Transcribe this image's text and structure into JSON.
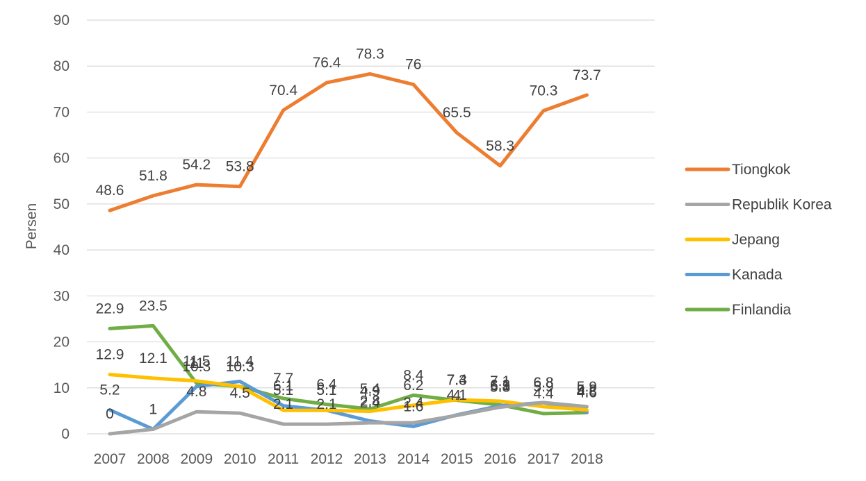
{
  "chart_data": {
    "type": "line",
    "title": "",
    "xlabel": "",
    "ylabel": "Persen",
    "ylim": [
      0,
      90
    ],
    "yticks": [
      0,
      10,
      20,
      30,
      40,
      50,
      60,
      70,
      80,
      90
    ],
    "grid": true,
    "legend": "right",
    "x": [
      "2007",
      "2008",
      "2009",
      "2010",
      "2011",
      "2012",
      "2013",
      "2014",
      "2015",
      "2016",
      "2017",
      "2018"
    ],
    "series": [
      {
        "name": "Tiongkok",
        "color": "#ED7D31",
        "values": [
          48.6,
          51.8,
          54.2,
          53.8,
          70.4,
          76.4,
          78.3,
          76,
          65.5,
          58.3,
          70.3,
          73.7
        ]
      },
      {
        "name": "Republik Korea",
        "color": "#A5A5A5",
        "values": [
          0,
          1,
          4.8,
          4.5,
          2.1,
          2.1,
          2.4,
          2.4,
          4,
          5.8,
          6.8,
          5.9
        ]
      },
      {
        "name": "Jepang",
        "color": "#FFC000",
        "values": [
          12.9,
          12.1,
          11.5,
          10.3,
          5.1,
          5.1,
          4.9,
          6.2,
          7.4,
          7.1,
          5.9,
          5.2
        ]
      },
      {
        "name": "Kanada",
        "color": "#5B9BD5",
        "values": [
          5.2,
          1,
          10.3,
          11.4,
          6.1,
          5.1,
          2.8,
          1.6,
          4.1,
          6.1,
          6.8,
          4.8
        ]
      },
      {
        "name": "Finlandia",
        "color": "#70AD47",
        "values": [
          22.9,
          23.5,
          11,
          10.3,
          7.7,
          6.4,
          5.4,
          8.4,
          7.3,
          6.3,
          4.4,
          4.6
        ]
      }
    ]
  }
}
